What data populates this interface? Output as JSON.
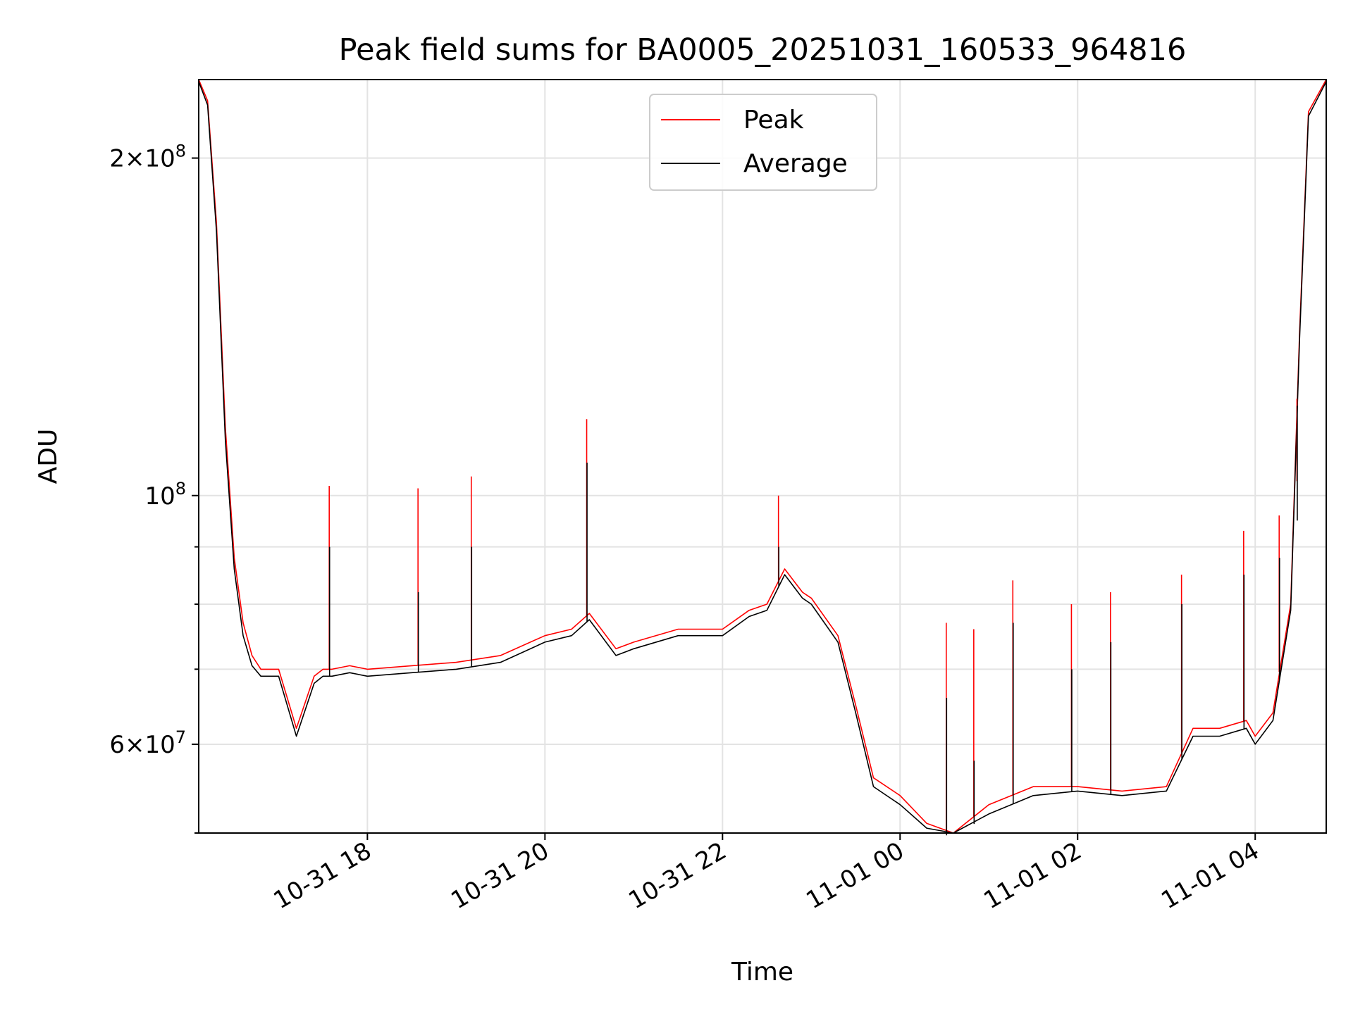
{
  "chart_data": {
    "type": "line",
    "title": "Peak field sums for BA0005_20251031_160533_964816",
    "xlabel": "Time",
    "ylabel": "ADU",
    "yscale": "log",
    "ylim": [
      50000000,
      235000000
    ],
    "xlim_hours": [
      16.1,
      28.8
    ],
    "x_ticks": [
      {
        "hours": 18,
        "label": "10-31 18"
      },
      {
        "hours": 20,
        "label": "10-31 20"
      },
      {
        "hours": 22,
        "label": "10-31 22"
      },
      {
        "hours": 24,
        "label": "11-01 00"
      },
      {
        "hours": 26,
        "label": "11-01 02"
      },
      {
        "hours": 28,
        "label": "11-01 04"
      }
    ],
    "y_major_ticks": [
      {
        "value": 60000000,
        "label_mantissa": "6",
        "label_exp": "7"
      },
      {
        "value": 100000000,
        "label_mantissa": "",
        "label_exp": "8"
      },
      {
        "value": 200000000,
        "label_mantissa": "2",
        "label_exp": "8"
      }
    ],
    "y_minor_ticks": [
      50000000,
      70000000,
      80000000,
      90000000
    ],
    "grid": true,
    "legend": {
      "position": "upper center",
      "entries": [
        "Peak",
        "Average"
      ]
    },
    "series": [
      {
        "name": "Peak",
        "color": "#ff0000",
        "x": [
          16.1,
          16.2,
          16.3,
          16.4,
          16.5,
          16.6,
          16.7,
          16.8,
          16.9,
          17.0,
          17.2,
          17.4,
          17.5,
          17.6,
          17.8,
          18.0,
          18.5,
          19.0,
          19.5,
          20.0,
          20.3,
          20.5,
          20.8,
          21.0,
          21.5,
          22.0,
          22.3,
          22.5,
          22.7,
          22.9,
          23.0,
          23.3,
          23.5,
          23.7,
          24.0,
          24.3,
          24.6,
          25.0,
          25.5,
          26.0,
          26.5,
          27.0,
          27.3,
          27.6,
          27.9,
          28.0,
          28.2,
          28.4,
          28.5,
          28.6,
          28.8
        ],
        "y": [
          235000000,
          225000000,
          175000000,
          115000000,
          88000000,
          77000000,
          72000000,
          70000000,
          70000000,
          70000000,
          62000000,
          69000000,
          70000000,
          70000000,
          70500000,
          70000000,
          70500000,
          71000000,
          72000000,
          75000000,
          76000000,
          78500000,
          73000000,
          74000000,
          76000000,
          76000000,
          79000000,
          80000000,
          86000000,
          82000000,
          81000000,
          75000000,
          65000000,
          56000000,
          54000000,
          51000000,
          50000000,
          53000000,
          55000000,
          55000000,
          54500000,
          55000000,
          62000000,
          62000000,
          63000000,
          61000000,
          64000000,
          80000000,
          140000000,
          220000000,
          235000000
        ]
      },
      {
        "name": "Average",
        "color": "#000000",
        "x": [
          16.1,
          16.2,
          16.3,
          16.4,
          16.5,
          16.6,
          16.7,
          16.8,
          16.9,
          17.0,
          17.2,
          17.4,
          17.5,
          17.6,
          17.8,
          18.0,
          18.5,
          19.0,
          19.5,
          20.0,
          20.3,
          20.5,
          20.8,
          21.0,
          21.5,
          22.0,
          22.3,
          22.5,
          22.7,
          22.9,
          23.0,
          23.3,
          23.5,
          23.7,
          24.0,
          24.3,
          24.6,
          25.0,
          25.5,
          26.0,
          26.5,
          27.0,
          27.3,
          27.6,
          27.9,
          28.0,
          28.2,
          28.4,
          28.5,
          28.6,
          28.8
        ],
        "y": [
          234000000,
          223000000,
          172000000,
          112000000,
          86000000,
          75000000,
          70500000,
          69000000,
          69000000,
          69000000,
          61000000,
          68000000,
          69000000,
          69000000,
          69500000,
          69000000,
          69500000,
          70000000,
          71000000,
          74000000,
          75000000,
          77500000,
          72000000,
          73000000,
          75000000,
          75000000,
          78000000,
          79000000,
          85000000,
          81000000,
          80000000,
          74000000,
          64000000,
          55000000,
          53000000,
          50500000,
          49500000,
          52000000,
          54000000,
          54500000,
          54000000,
          54500000,
          61000000,
          61000000,
          62000000,
          60000000,
          63000000,
          79000000,
          138000000,
          218000000,
          234000000
        ]
      }
    ],
    "spikes": [
      {
        "hours": 17.57,
        "peak": 102000000,
        "average": 90000000
      },
      {
        "hours": 18.57,
        "peak": 101500000,
        "average": 82000000
      },
      {
        "hours": 19.17,
        "peak": 104000000,
        "average": 90000000
      },
      {
        "hours": 20.47,
        "peak": 117000000,
        "average": 107000000
      },
      {
        "hours": 22.63,
        "peak": 100000000,
        "average": 90000000
      },
      {
        "hours": 24.52,
        "peak": 77000000,
        "average": 66000000
      },
      {
        "hours": 24.83,
        "peak": 76000000,
        "average": 58000000
      },
      {
        "hours": 25.27,
        "peak": 84000000,
        "average": 77000000
      },
      {
        "hours": 25.93,
        "peak": 80000000,
        "average": 70000000
      },
      {
        "hours": 26.37,
        "peak": 82000000,
        "average": 74000000
      },
      {
        "hours": 27.17,
        "peak": 85000000,
        "average": 80000000
      },
      {
        "hours": 27.87,
        "peak": 93000000,
        "average": 85000000
      },
      {
        "hours": 28.27,
        "peak": 96000000,
        "average": 88000000
      },
      {
        "hours": 28.47,
        "peak": 103000000,
        "average": 95000000
      }
    ]
  }
}
